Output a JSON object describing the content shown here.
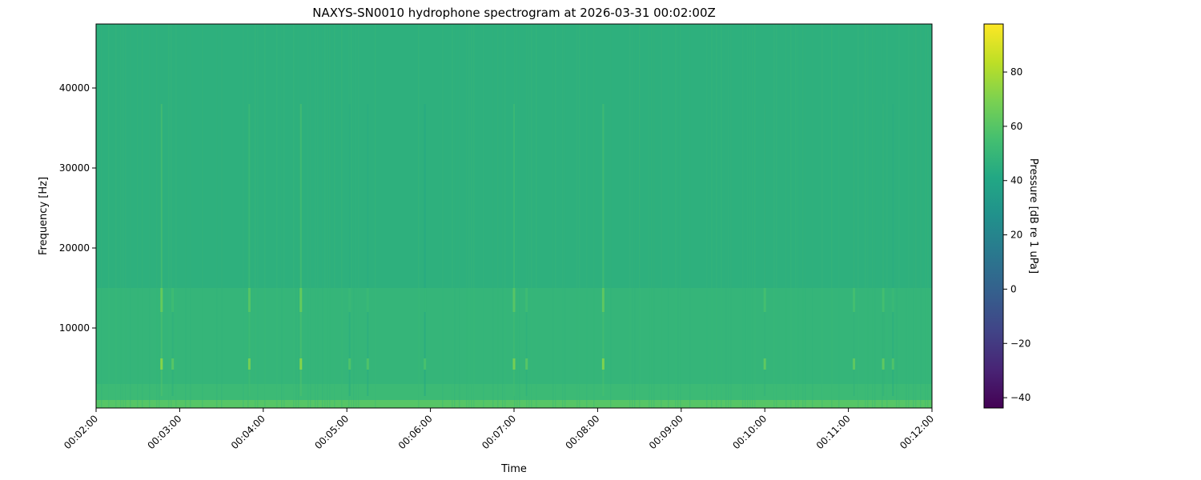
{
  "chart_data": {
    "type": "heatmap",
    "title": "NAXYS-SN0010 hydrophone spectrogram at 2026-03-31 00:02:00Z",
    "xlabel": "Time",
    "ylabel": "Frequency [Hz]",
    "colorbar_label": "Pressure [dB re 1 uPa]",
    "colormap": "viridis",
    "xlim": [
      "00:02:00",
      "00:12:00"
    ],
    "ylim": [
      0,
      48000
    ],
    "clim": [
      -43.8,
      97.7
    ],
    "x_ticks": [
      "00:02:00",
      "00:03:00",
      "00:04:00",
      "00:05:00",
      "00:06:00",
      "00:07:00",
      "00:08:00",
      "00:09:00",
      "00:10:00",
      "00:11:00",
      "00:12:00"
    ],
    "y_ticks": [
      10000,
      20000,
      30000,
      40000
    ],
    "colorbar_ticks": [
      -40,
      -20,
      0,
      20,
      40,
      60,
      80
    ],
    "grid": false,
    "background_levels_db": [
      {
        "freq_range": [
          0,
          1000
        ],
        "db": 60
      },
      {
        "freq_range": [
          1000,
          3000
        ],
        "db": 52
      },
      {
        "freq_range": [
          3000,
          15000
        ],
        "db": 49
      },
      {
        "freq_range": [
          15000,
          48000
        ],
        "db": 46
      }
    ],
    "transients": [
      {
        "time": "00:02:47",
        "peak_db": 72
      },
      {
        "time": "00:02:55",
        "peak_db": 60
      },
      {
        "time": "00:03:50",
        "peak_db": 68
      },
      {
        "time": "00:04:27",
        "peak_db": 72
      },
      {
        "time": "00:05:02",
        "peak_db": 58
      },
      {
        "time": "00:05:15",
        "peak_db": 58
      },
      {
        "time": "00:05:56",
        "peak_db": 56
      },
      {
        "time": "00:07:00",
        "peak_db": 68
      },
      {
        "time": "00:07:09",
        "peak_db": 60
      },
      {
        "time": "00:08:04",
        "peak_db": 70
      },
      {
        "time": "00:10:00",
        "peak_db": 62
      },
      {
        "time": "00:11:04",
        "peak_db": 62
      },
      {
        "time": "00:11:25",
        "peak_db": 62
      },
      {
        "time": "00:11:32",
        "peak_db": 58
      }
    ]
  }
}
